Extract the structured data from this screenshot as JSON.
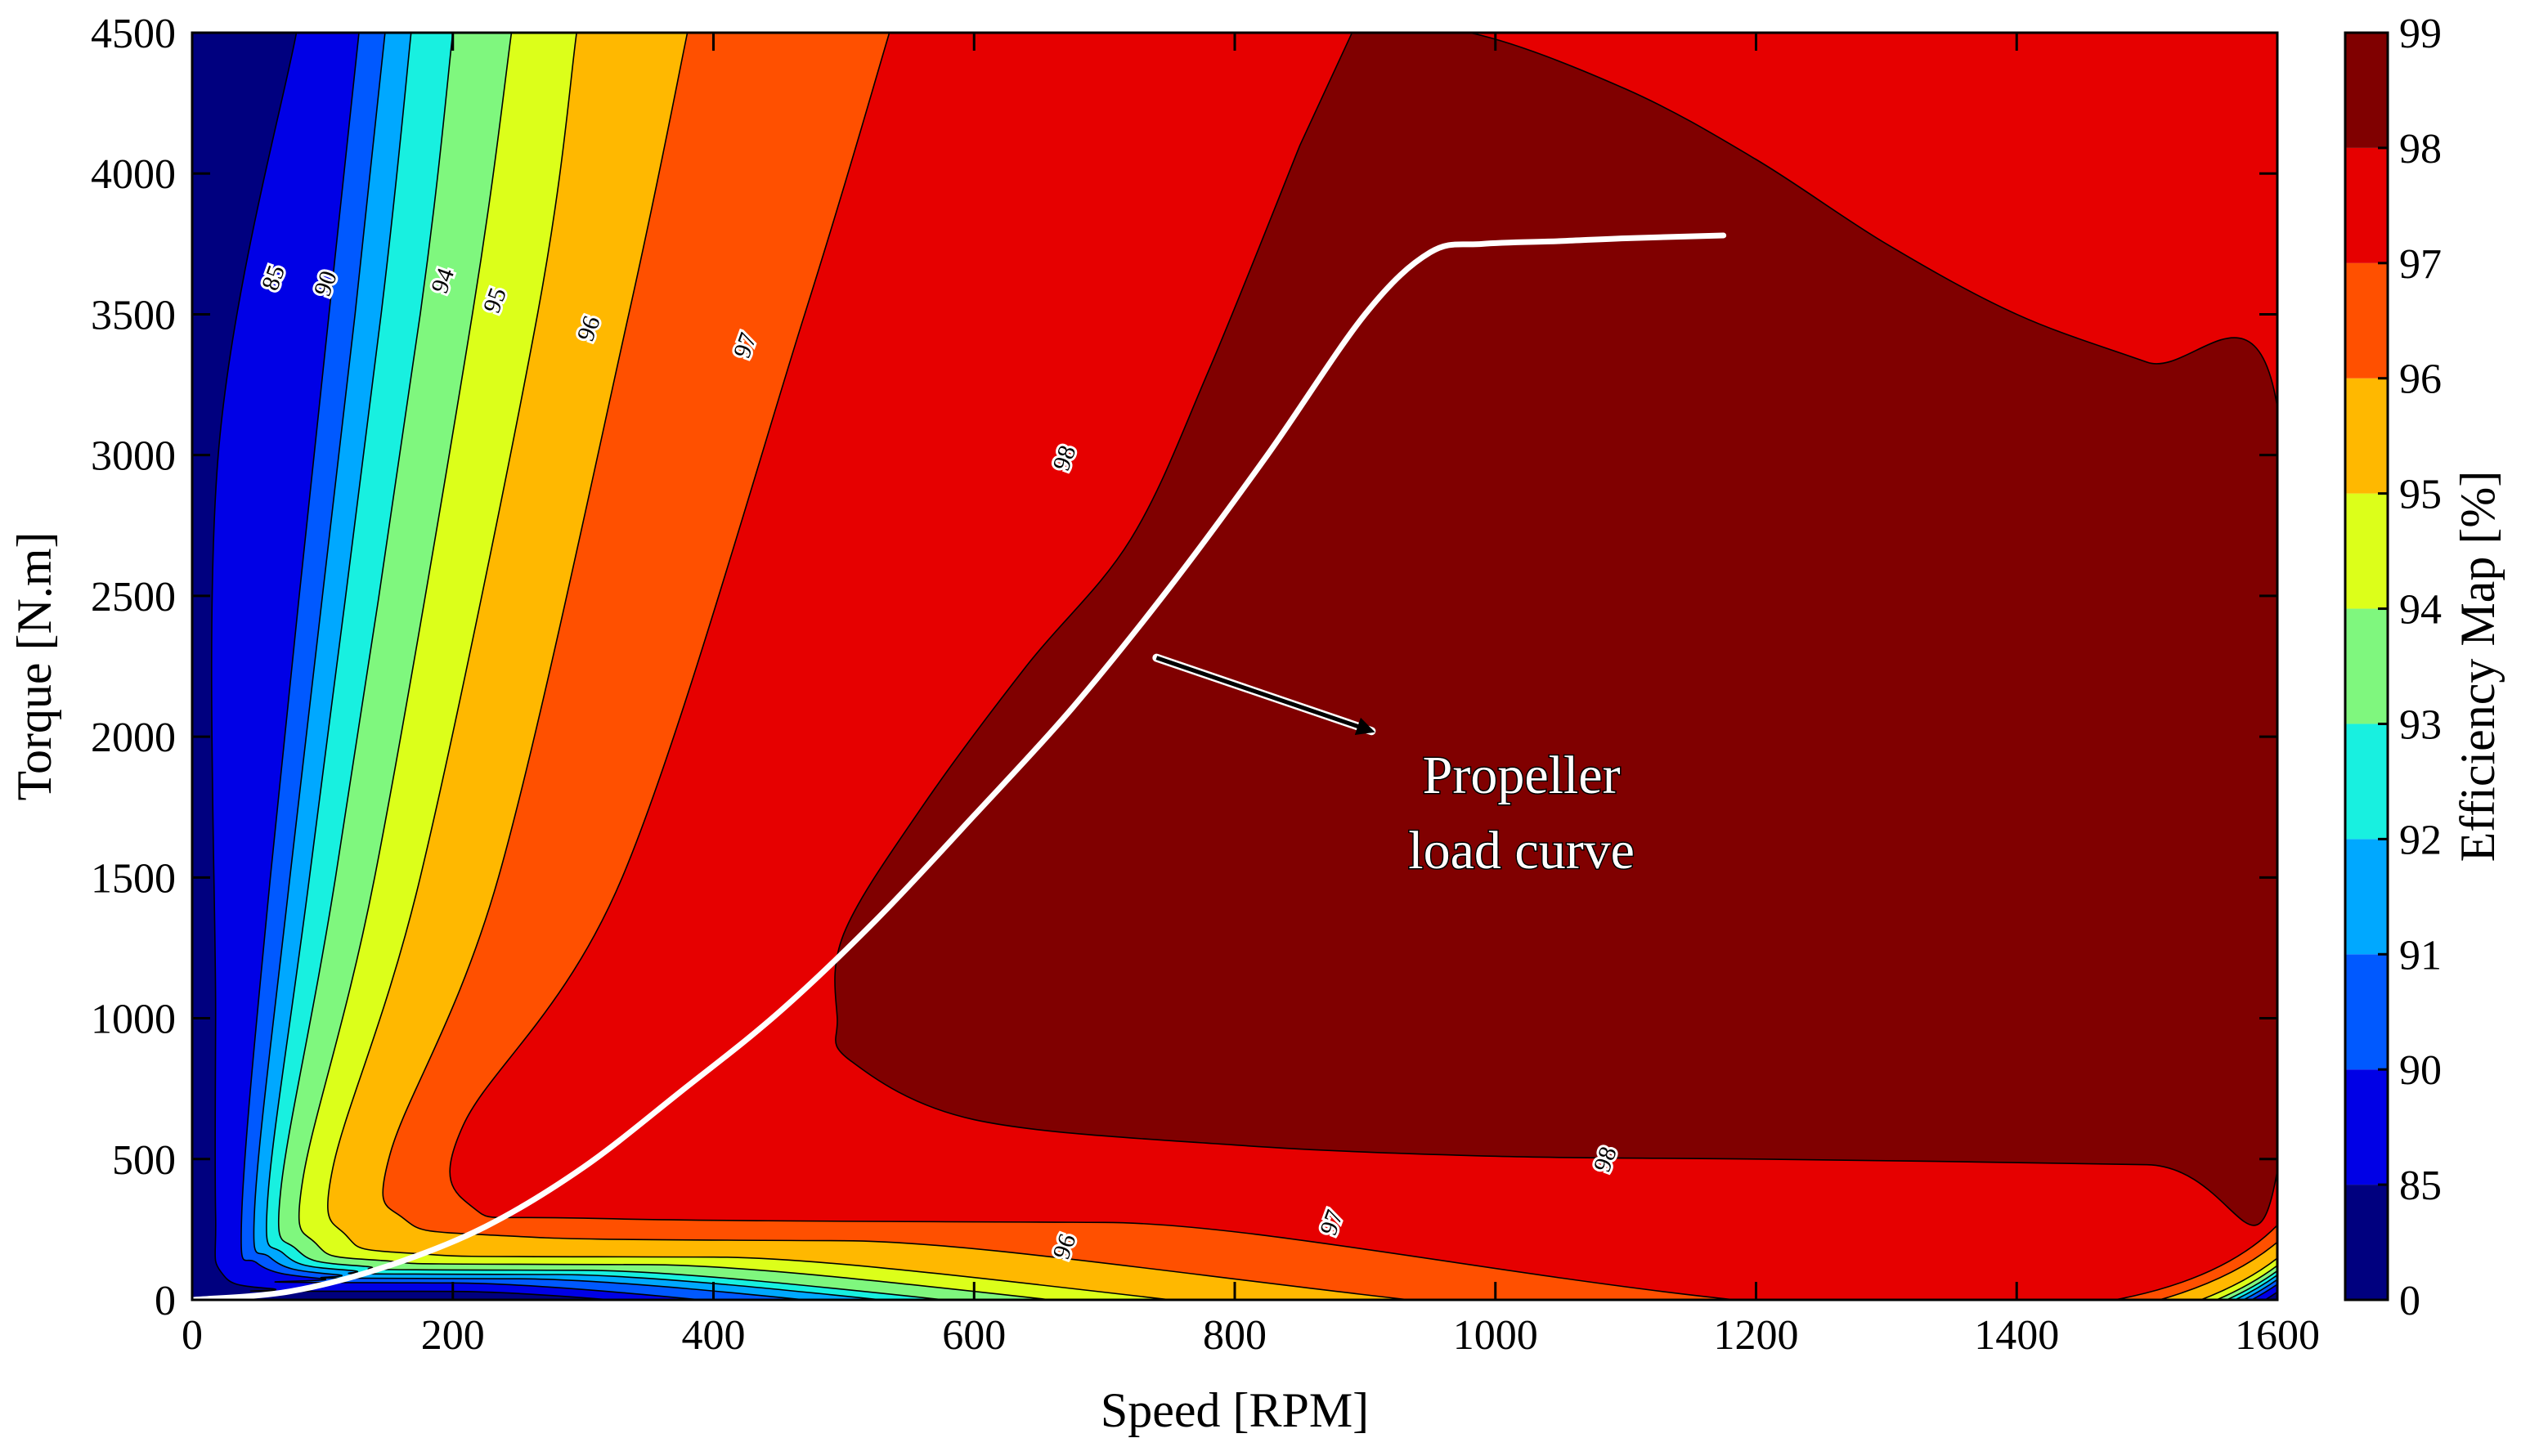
{
  "chart_data": {
    "type": "heatmap",
    "subtype": "filled-contour",
    "xlabel": "Speed [RPM]",
    "ylabel": "Torque [N.m]",
    "xlim": [
      0,
      1600
    ],
    "ylim": [
      0,
      4500
    ],
    "x_ticks": [
      "0",
      "200",
      "400",
      "600",
      "800",
      "1000",
      "1200",
      "1400",
      "1600"
    ],
    "y_ticks": [
      "0",
      "500",
      "1000",
      "1500",
      "2000",
      "2500",
      "3000",
      "3500",
      "4000",
      "4500"
    ],
    "colorbar": {
      "label": "Efficiency Map [%]",
      "levels": [
        "0",
        "85",
        "90",
        "91",
        "92",
        "93",
        "94",
        "95",
        "96",
        "97",
        "98",
        "99"
      ],
      "colors": [
        "#00007f",
        "#0000e6",
        "#0059ff",
        "#00a8ff",
        "#18f0e0",
        "#7ff77e",
        "#dcff1a",
        "#ffb800",
        "#ff5000",
        "#e60000",
        "#800000"
      ]
    },
    "regions": [
      {
        "level": "0-85",
        "color": "#00007f",
        "boundary": [
          [
            0,
            4500
          ],
          [
            0,
            0
          ],
          [
            1600,
            0
          ],
          [
            1600,
            4500
          ]
        ]
      },
      {
        "level": "85-90",
        "color": "#0000e6",
        "boundary": [
          [
            80,
            4500
          ],
          [
            20,
            3000
          ],
          [
            18,
            1000
          ],
          [
            18,
            300
          ],
          [
            22,
            100
          ],
          [
            60,
            40
          ],
          [
            200,
            30
          ],
          [
            1600,
            28
          ],
          [
            1600,
            4500
          ]
        ]
      },
      {
        "level": "90-91",
        "color": "#0059ff",
        "boundary": [
          [
            128,
            4500
          ],
          [
            105,
            3500
          ],
          [
            60,
            1500
          ],
          [
            38,
            300
          ],
          [
            50,
            130
          ],
          [
            100,
            75
          ],
          [
            200,
            60
          ],
          [
            1600,
            55
          ],
          [
            1600,
            4500
          ]
        ]
      },
      {
        "level": "91-92",
        "color": "#00a8ff",
        "boundary": [
          [
            148,
            4500
          ],
          [
            125,
            3500
          ],
          [
            75,
            1500
          ],
          [
            48,
            330
          ],
          [
            60,
            150
          ],
          [
            110,
            90
          ],
          [
            250,
            75
          ],
          [
            1600,
            72
          ],
          [
            1600,
            4500
          ]
        ]
      },
      {
        "level": "92-93",
        "color": "#18f0e0",
        "boundary": [
          [
            168,
            4500
          ],
          [
            145,
            3500
          ],
          [
            90,
            1500
          ],
          [
            58,
            360
          ],
          [
            70,
            165
          ],
          [
            120,
            105
          ],
          [
            280,
            90
          ],
          [
            1600,
            88
          ],
          [
            1600,
            4500
          ]
        ]
      },
      {
        "level": "93-94",
        "color": "#7ff77e",
        "boundary": [
          [
            200,
            4500
          ],
          [
            175,
            3500
          ],
          [
            110,
            1500
          ],
          [
            68,
            390
          ],
          [
            80,
            180
          ],
          [
            130,
            120
          ],
          [
            300,
            105
          ],
          [
            1600,
            103
          ],
          [
            1600,
            4500
          ]
        ]
      },
      {
        "level": "94-95",
        "color": "#dcff1a",
        "boundary": [
          [
            245,
            4500
          ],
          [
            215,
            3500
          ],
          [
            140,
            1500
          ],
          [
            85,
            430
          ],
          [
            95,
            200
          ],
          [
            145,
            140
          ],
          [
            350,
            125
          ],
          [
            1600,
            122
          ],
          [
            1600,
            4500
          ]
        ]
      },
      {
        "level": "95-96",
        "color": "#ffb800",
        "boundary": [
          [
            295,
            4500
          ],
          [
            265,
            3500
          ],
          [
            175,
            1500
          ],
          [
            108,
            470
          ],
          [
            118,
            230
          ],
          [
            170,
            165
          ],
          [
            400,
            152
          ],
          [
            1600,
            148
          ],
          [
            1600,
            4500
          ]
        ]
      },
      {
        "level": "96-97",
        "color": "#ff5000",
        "boundary": [
          [
            380,
            4500
          ],
          [
            335,
            3500
          ],
          [
            235,
            1500
          ],
          [
            152,
            520
          ],
          [
            162,
            290
          ],
          [
            230,
            230
          ],
          [
            500,
            210
          ],
          [
            1600,
            205
          ],
          [
            1600,
            4500
          ]
        ]
      },
      {
        "level": "97-98",
        "color": "#e60000",
        "boundary": [
          [
            535,
            4500
          ],
          [
            470,
            3500
          ],
          [
            330,
            1500
          ],
          [
            208,
            620
          ],
          [
            215,
            330
          ],
          [
            300,
            290
          ],
          [
            700,
            275
          ],
          [
            1600,
            265
          ],
          [
            1600,
            4500
          ]
        ]
      },
      {
        "level": ">98",
        "color": "#800000",
        "boundary": [
          [
            890,
            4500
          ],
          [
            980,
            4500
          ],
          [
            1100,
            4300
          ],
          [
            1200,
            4050
          ],
          [
            1300,
            3750
          ],
          [
            1400,
            3500
          ],
          [
            1500,
            3330
          ],
          [
            1600,
            3170
          ],
          [
            1600,
            460
          ],
          [
            1500,
            480
          ],
          [
            1200,
            500
          ],
          [
            1000,
            510
          ],
          [
            800,
            550
          ],
          [
            600,
            640
          ],
          [
            505,
            850
          ],
          [
            495,
            1000
          ],
          [
            500,
            1300
          ],
          [
            560,
            1750
          ],
          [
            640,
            2250
          ],
          [
            720,
            2700
          ],
          [
            780,
            3300
          ],
          [
            850,
            4100
          ]
        ]
      }
    ],
    "contour_labels": [
      {
        "text": "85",
        "x": 68,
        "y": 3620
      },
      {
        "text": "90",
        "x": 108,
        "y": 3600
      },
      {
        "text": "94",
        "x": 198,
        "y": 3610
      },
      {
        "text": "95",
        "x": 238,
        "y": 3540
      },
      {
        "text": "96",
        "x": 310,
        "y": 3440
      },
      {
        "text": "97",
        "x": 430,
        "y": 3380
      },
      {
        "text": "98",
        "x": 675,
        "y": 2980
      },
      {
        "text": "98",
        "x": 1090,
        "y": 490
      },
      {
        "text": "97",
        "x": 880,
        "y": 265
      },
      {
        "text": "96",
        "x": 675,
        "y": 180
      }
    ],
    "series": [
      {
        "name": "Propeller load curve",
        "color": "#ffffff",
        "x": [
          0,
          75,
          150,
          225,
          300,
          375,
          450,
          525,
          600,
          675,
          750,
          825,
          900,
          950,
          990,
          1050,
          1100,
          1175
        ],
        "y": [
          0,
          30,
          120,
          260,
          470,
          740,
          1020,
          1350,
          1720,
          2100,
          2530,
          3000,
          3500,
          3720,
          3750,
          3760,
          3770,
          3780
        ]
      }
    ],
    "annotations": [
      {
        "line1": "Propeller",
        "line2": "load curve",
        "text_x": 1020,
        "text_y": 1800,
        "arrow_from": [
          740,
          2280
        ],
        "arrow_to": [
          905,
          2020
        ]
      }
    ]
  }
}
